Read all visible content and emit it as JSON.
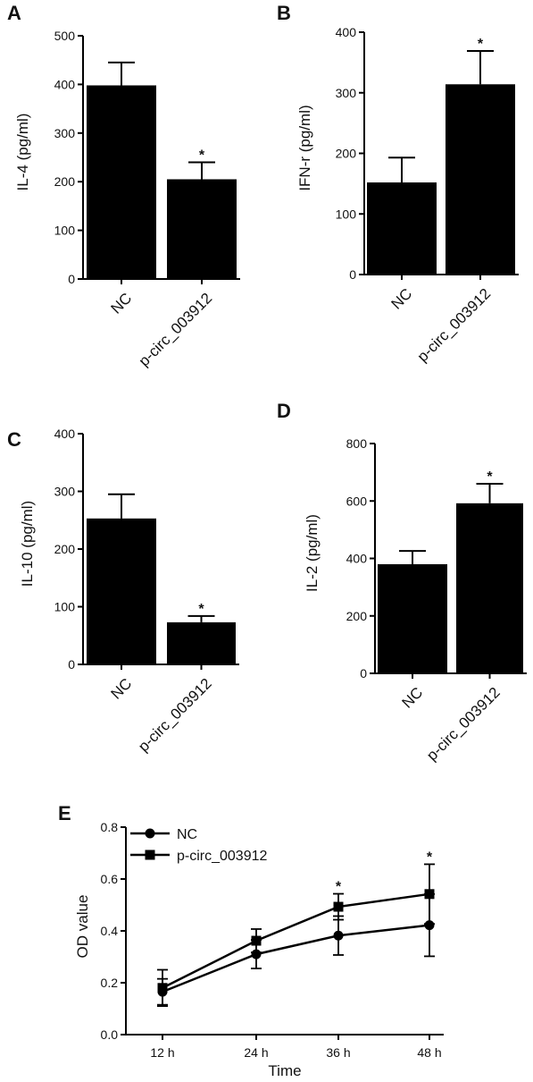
{
  "chart_data": [
    {
      "panel": "A",
      "type": "bar",
      "ylabel": "IL-4 (pg/ml)",
      "categories": [
        "NC",
        "p-circ_003912"
      ],
      "values": [
        398,
        205
      ],
      "errors": [
        47,
        35
      ],
      "significance": [
        "",
        "*"
      ],
      "ylim": [
        0,
        500
      ],
      "yticks": [
        0,
        100,
        200,
        300,
        400,
        500
      ]
    },
    {
      "panel": "B",
      "type": "bar",
      "ylabel": "IFN-r (pg/ml)",
      "categories": [
        "NC",
        "p-circ_003912"
      ],
      "values": [
        152,
        314
      ],
      "errors": [
        41,
        55
      ],
      "significance": [
        "",
        "*"
      ],
      "ylim": [
        0,
        400
      ],
      "yticks": [
        0,
        100,
        200,
        300,
        400
      ]
    },
    {
      "panel": "C",
      "type": "bar",
      "ylabel": "IL-10 (pg/ml)",
      "categories": [
        "NC",
        "p-circ_003912"
      ],
      "values": [
        253,
        73
      ],
      "errors": [
        42,
        11
      ],
      "significance": [
        "",
        "*"
      ],
      "ylim": [
        0,
        400
      ],
      "yticks": [
        0,
        100,
        200,
        300,
        400
      ]
    },
    {
      "panel": "D",
      "type": "bar",
      "ylabel": "IL-2 (pg/ml)",
      "categories": [
        "NC",
        "p-circ_003912"
      ],
      "values": [
        380,
        592
      ],
      "errors": [
        46,
        68
      ],
      "significance": [
        "",
        "*"
      ],
      "ylim": [
        0,
        800
      ],
      "yticks": [
        0,
        200,
        400,
        600,
        800
      ]
    },
    {
      "panel": "E",
      "type": "line",
      "xlabel": "Time",
      "ylabel": "OD value",
      "x": [
        "12 h",
        "24 h",
        "36 h",
        "48 h"
      ],
      "series": [
        {
          "name": "NC",
          "marker": "circle",
          "values": [
            0.165,
            0.31,
            0.382,
            0.422
          ],
          "errors": [
            0.05,
            0.055,
            0.075,
            0.12
          ]
        },
        {
          "name": "p-circ_003912",
          "marker": "square",
          "values": [
            0.18,
            0.362,
            0.493,
            0.542
          ],
          "errors": [
            0.07,
            0.045,
            0.05,
            0.115
          ]
        }
      ],
      "significance": [
        "",
        "",
        "*",
        "*"
      ],
      "ylim": [
        0,
        0.8
      ],
      "yticks": [
        "0.0",
        "0.2",
        "0.4",
        "0.6",
        "0.8"
      ],
      "legend": "top-left"
    }
  ]
}
